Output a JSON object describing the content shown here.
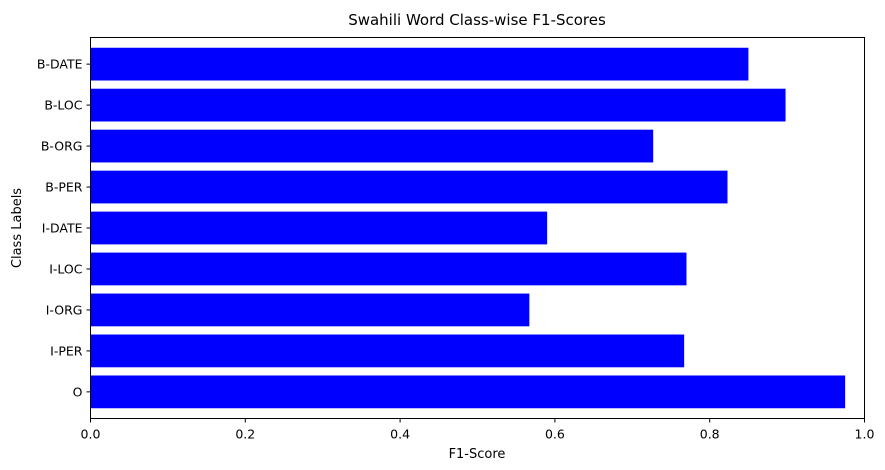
{
  "chart_data": {
    "type": "bar",
    "orientation": "horizontal",
    "title": "Swahili Word Class-wise F1-Scores",
    "xlabel": "F1-Score",
    "ylabel": "Class Labels",
    "categories": [
      "O",
      "I-PER",
      "I-ORG",
      "I-LOC",
      "I-DATE",
      "B-PER",
      "B-ORG",
      "B-LOC",
      "B-DATE"
    ],
    "values": [
      0.975,
      0.767,
      0.567,
      0.77,
      0.59,
      0.823,
      0.727,
      0.898,
      0.85
    ],
    "xlim": [
      0.0,
      1.0
    ],
    "xticks": [
      "0.0",
      "0.2",
      "0.4",
      "0.6",
      "0.8",
      "1.0"
    ],
    "bar_color": "#0000ff",
    "grid": false,
    "legend": "none"
  }
}
